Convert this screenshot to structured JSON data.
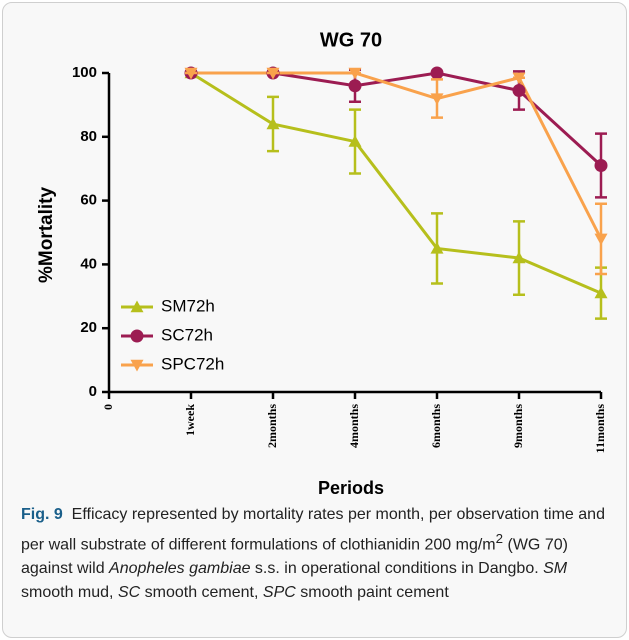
{
  "chart_data": {
    "type": "line",
    "title": "WG 70",
    "y_label": "%Mortality",
    "x_label": "Periods",
    "categories": [
      "0",
      "1week",
      "2months",
      "4months",
      "6months",
      "9months",
      "11months"
    ],
    "series": [
      {
        "name": "SM72h",
        "color": "#b6bf1c",
        "marker": "triangle-up",
        "values": [
          null,
          100,
          84,
          78.5,
          45,
          42,
          31
        ],
        "errors": [
          null,
          0,
          8.5,
          10,
          11,
          11.5,
          8
        ]
      },
      {
        "name": "SC72h",
        "color": "#9c1c52",
        "marker": "circle",
        "values": [
          null,
          100,
          100,
          96,
          100,
          94.5,
          71
        ],
        "errors": [
          null,
          0,
          0,
          5,
          0,
          6,
          10
        ]
      },
      {
        "name": "SPC72h",
        "color": "#f9a24c",
        "marker": "triangle-down",
        "values": [
          null,
          100,
          100,
          100,
          92,
          98.5,
          48
        ],
        "errors": [
          null,
          0,
          0,
          0,
          6,
          0,
          11
        ]
      }
    ],
    "ylim": [
      0,
      100
    ],
    "yticks": [
      0,
      20,
      40,
      60,
      80,
      100
    ],
    "legend": "lower left"
  },
  "caption": {
    "label": "Fig. 9",
    "parts": [
      "Efficacy represented by mortality rates per month, per observation time and per wall substrate of different formulations of clothianidin 200 mg/m",
      "2",
      " (WG 70) against wild ",
      "Anopheles gambiae",
      " s.s. in operational conditions in Dangbo. ",
      "SM",
      " smooth mud, ",
      "SC",
      " smooth cement, ",
      "SPC",
      " smooth paint cement"
    ]
  }
}
